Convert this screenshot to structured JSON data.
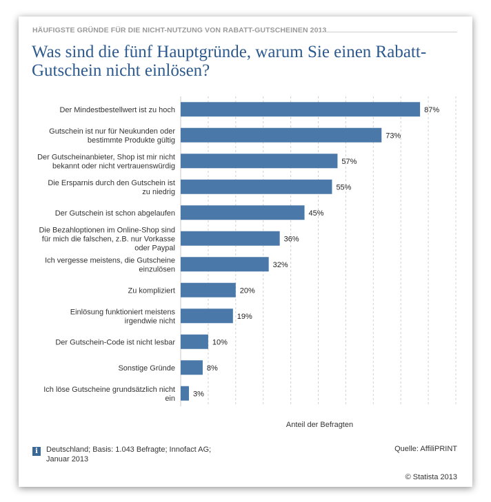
{
  "header": {
    "overline": "HÄUFIGSTE GRÜNDE FÜR DIE NICHT-NUTZUNG VON RABATT-GUTSCHEINEN 2013",
    "title": "Was sind die fünf Hauptgründe, warum Sie einen Rabatt-Gutschein nicht einlösen?"
  },
  "chart_data": {
    "type": "bar",
    "orientation": "horizontal",
    "categories": [
      "Der Mindestbestellwert ist zu hoch",
      "Gutschein ist nur für Neukunden oder bestimmte Produkte gültig",
      "Der Gutscheinanbieter, Shop ist mir nicht bekannt oder nicht vertrauenswürdig",
      "Die Ersparnis durch den Gutschein ist zu niedrig",
      "Der Gutschein ist schon abgelaufen",
      "Die Bezahloptionen im Online-Shop sind für mich die falschen, z.B. nur Vorkasse oder Paypal",
      "Ich vergesse meistens, die Gutscheine einzulösen",
      "Zu kompliziert",
      "Einlösung funktioniert meistens irgendwie nicht",
      "Der Gutschein-Code ist nicht lesbar",
      "Sonstige Gründe",
      "Ich löse Gutscheine grundsätzlich nicht ein"
    ],
    "category_lines": [
      [
        "Der Mindestbestellwert ist zu hoch"
      ],
      [
        "Gutschein ist nur für Neukunden oder",
        "bestimmte Produkte gültig"
      ],
      [
        "Der Gutscheinanbieter, Shop ist mir nicht",
        "bekannt oder nicht vertrauenswürdig"
      ],
      [
        "Die Ersparnis durch den Gutschein ist",
        "zu niedrig"
      ],
      [
        "Der Gutschein ist schon abgelaufen"
      ],
      [
        "Die Bezahloptionen im Online-Shop sind",
        "für mich die falschen, z.B. nur Vorkasse",
        "oder Paypal"
      ],
      [
        "Ich vergesse meistens, die Gutscheine",
        "einzulösen"
      ],
      [
        "Zu kompliziert"
      ],
      [
        "Einlösung funktioniert meistens",
        "irgendwie nicht"
      ],
      [
        "Der Gutschein-Code ist nicht lesbar"
      ],
      [
        "Sonstige Gründe"
      ],
      [
        "Ich löse Gutscheine grundsätzlich nicht",
        "ein"
      ]
    ],
    "values": [
      87,
      73,
      57,
      55,
      45,
      36,
      32,
      20,
      19,
      10,
      8,
      3
    ],
    "value_suffix": "%",
    "xlabel": "Anteil der Befragten",
    "xlim": [
      0,
      100
    ],
    "bar_color": "#4a78a8",
    "grid": true
  },
  "footer": {
    "info_icon": "i",
    "note": "Deutschland; Basis: 1.043 Befragte; Innofact AG; Januar 2013",
    "source": "Quelle: AffiliPRINT",
    "copyright": "© Statista 2013"
  },
  "colors": {
    "title": "#2d5a8e",
    "overline": "#9a9a9a",
    "bar": "#4a78a8"
  }
}
